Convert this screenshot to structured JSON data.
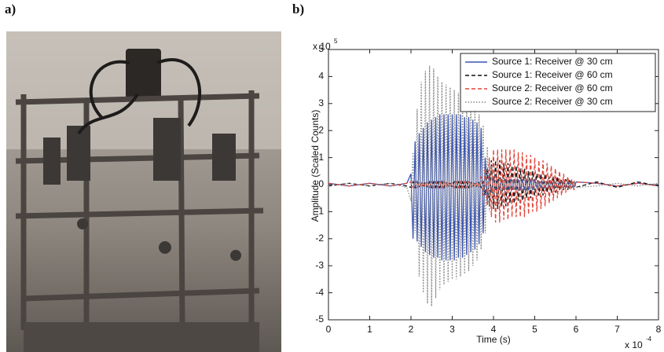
{
  "panel_labels": [
    "a)",
    "b)"
  ],
  "chart_data": {
    "type": "line",
    "xlabel": "Time (s)",
    "ylabel": "Amplitude (Scaled Counts)",
    "x_multiplier": {
      "base": "x 10",
      "exponent": "-4"
    },
    "y_multiplier": {
      "base": "x 10",
      "exponent": "5"
    },
    "xlim": [
      0,
      8
    ],
    "ylim": [
      -5,
      5
    ],
    "xticks": [
      0,
      1,
      2,
      3,
      4,
      5,
      6,
      7,
      8
    ],
    "yticks": [
      -5,
      -4,
      -3,
      -2,
      -1,
      0,
      1,
      2,
      3,
      4,
      5
    ],
    "grid": false,
    "legend": "upper right",
    "x": [
      0,
      0.5,
      1,
      1.5,
      1.9,
      2,
      2.05,
      2.1,
      2.15,
      2.2,
      2.25,
      2.3,
      2.35,
      2.4,
      2.45,
      2.5,
      2.55,
      2.6,
      2.65,
      2.7,
      2.75,
      2.8,
      2.85,
      2.9,
      2.95,
      3,
      3.05,
      3.1,
      3.15,
      3.2,
      3.25,
      3.3,
      3.35,
      3.4,
      3.45,
      3.5,
      3.55,
      3.6,
      3.65,
      3.7,
      3.75,
      3.8,
      3.85,
      3.9,
      3.95,
      4,
      4.05,
      4.1,
      4.15,
      4.2,
      4.25,
      4.3,
      4.35,
      4.4,
      4.45,
      4.5,
      4.55,
      4.6,
      4.65,
      4.7,
      4.75,
      4.8,
      4.85,
      4.9,
      4.95,
      5,
      5.05,
      5.1,
      5.15,
      5.2,
      5.25,
      5.3,
      5.35,
      5.4,
      5.45,
      5.5,
      5.55,
      5.6,
      5.65,
      5.7,
      5.75,
      5.8,
      5.85,
      5.9,
      5.95,
      6,
      6.5,
      7,
      7.5,
      8
    ],
    "series": [
      {
        "name": "Source 1: Receiver @ 30 cm",
        "color": "#3a55b4",
        "dash": "solid",
        "values": [
          0.05,
          -0.05,
          0.05,
          -0.05,
          0.05,
          0.4,
          -2.0,
          1.6,
          -2.1,
          1.9,
          -2.3,
          2.1,
          -2.5,
          2.3,
          -2.6,
          2.4,
          -2.7,
          2.5,
          -2.7,
          2.6,
          -2.8,
          2.6,
          -2.8,
          2.6,
          -2.8,
          2.6,
          -2.8,
          2.6,
          -2.7,
          2.6,
          -2.7,
          2.5,
          -2.6,
          2.5,
          -2.5,
          2.4,
          -2.4,
          2.3,
          -2.2,
          2.1,
          -1.8,
          1.0,
          -0.6,
          0.4,
          -0.3,
          0.3,
          -0.2,
          0.2,
          -0.2,
          0.2,
          -0.2,
          0.2,
          -0.2,
          0.2,
          -0.2,
          0.2,
          -0.2,
          0.2,
          -0.2,
          0.2,
          -0.2,
          0.2,
          -0.2,
          0.2,
          -0.2,
          0.2,
          -0.1,
          0.1,
          -0.1,
          0.1,
          -0.1,
          0.1,
          -0.1,
          0.1,
          -0.1,
          0.1,
          -0.1,
          0.1,
          -0.1,
          0.1,
          -0.1,
          0.1,
          -0.1,
          0.1,
          -0.1,
          0.1,
          0.05,
          -0.05,
          0.05,
          -0.03
        ]
      },
      {
        "name": "Source 1: Receiver @ 60 cm",
        "color": "#111111",
        "dash": "dashed",
        "values": [
          -0.05,
          0.05,
          -0.05,
          0.05,
          -0.05,
          -0.1,
          0.1,
          -0.1,
          0.1,
          -0.1,
          0.1,
          -0.1,
          0.1,
          -0.1,
          0.1,
          -0.1,
          0.1,
          -0.1,
          0.1,
          -0.1,
          0.1,
          -0.1,
          0.1,
          -0.1,
          0.1,
          -0.1,
          0.1,
          -0.1,
          0.1,
          -0.1,
          0.1,
          -0.1,
          0.1,
          -0.1,
          0.1,
          -0.1,
          0.1,
          -0.1,
          0.1,
          -0.1,
          0.1,
          -0.4,
          0.6,
          -0.8,
          0.9,
          -0.9,
          0.9,
          -0.9,
          0.9,
          -0.8,
          0.8,
          -0.8,
          0.8,
          -0.7,
          0.7,
          -0.7,
          0.7,
          -0.6,
          0.6,
          -0.6,
          0.6,
          -0.5,
          0.5,
          -0.5,
          0.5,
          -0.4,
          0.4,
          -0.4,
          0.4,
          -0.4,
          0.4,
          -0.3,
          0.3,
          -0.3,
          0.3,
          -0.3,
          0.3,
          -0.2,
          0.2,
          -0.2,
          0.2,
          -0.2,
          0.2,
          -0.1,
          0.1,
          -0.1,
          0.1,
          -0.1,
          0.1,
          -0.05
        ]
      },
      {
        "name": "Source 2: Receiver @ 60 cm",
        "color": "#e0453a",
        "dash": "dashed",
        "values": [
          0.05,
          -0.05,
          0.05,
          -0.05,
          0.05,
          0.1,
          -0.1,
          0.1,
          -0.1,
          0.1,
          -0.1,
          0.1,
          -0.1,
          0.1,
          -0.1,
          0.1,
          -0.1,
          0.1,
          -0.1,
          0.1,
          -0.1,
          0.1,
          -0.1,
          0.1,
          -0.1,
          0.1,
          -0.1,
          0.1,
          -0.1,
          0.1,
          -0.1,
          0.1,
          -0.1,
          0.1,
          -0.1,
          0.1,
          -0.1,
          0.1,
          -0.1,
          0.3,
          -0.4,
          0.6,
          -0.8,
          1.0,
          -1.2,
          1.3,
          -1.4,
          1.3,
          -1.4,
          1.3,
          -1.3,
          1.3,
          -1.3,
          1.3,
          -1.2,
          1.3,
          -1.2,
          1.2,
          -1.2,
          1.2,
          -1.2,
          1.1,
          -1.1,
          1.1,
          -1.0,
          1.0,
          -1.0,
          0.9,
          -0.9,
          0.9,
          -0.8,
          0.8,
          -0.7,
          0.7,
          -0.6,
          0.6,
          -0.5,
          0.5,
          -0.4,
          0.4,
          -0.3,
          0.3,
          -0.2,
          0.2,
          -0.2,
          0.1,
          0.05,
          -0.05,
          0.05,
          -0.05
        ]
      },
      {
        "name": "Source 2: Receiver @ 30 cm",
        "color": "#8a8a8a",
        "dash": "dotted",
        "values": [
          -0.05,
          0.05,
          -0.05,
          0.05,
          -0.1,
          -0.6,
          1.2,
          -1.8,
          2.8,
          -3.4,
          3.8,
          -4.0,
          4.2,
          -4.4,
          4.4,
          -4.5,
          4.3,
          -4.2,
          4.0,
          -3.9,
          3.8,
          -3.7,
          3.7,
          -3.6,
          3.6,
          -3.5,
          3.5,
          -3.5,
          3.4,
          -3.4,
          3.3,
          -3.3,
          3.2,
          -3.2,
          3.1,
          -3.0,
          2.9,
          -2.8,
          2.6,
          -2.4,
          2.2,
          -1.8,
          1.4,
          -1.0,
          0.7,
          -0.4,
          0.2,
          -0.2,
          0.2,
          -0.2,
          0.2,
          -0.2,
          0.2,
          -0.2,
          0.2,
          -0.2,
          0.2,
          -0.2,
          0.2,
          -0.2,
          0.2,
          -0.2,
          0.2,
          -0.2,
          0.2,
          -0.2,
          0.1,
          -0.1,
          0.1,
          -0.1,
          0.1,
          -0.1,
          0.1,
          -0.1,
          0.1,
          -0.1,
          0.1,
          -0.1,
          0.1,
          -0.1,
          0.1,
          -0.1,
          0.1,
          -0.1,
          0.1,
          -0.1,
          -0.05,
          0.05,
          -0.05,
          0.05
        ]
      }
    ]
  }
}
